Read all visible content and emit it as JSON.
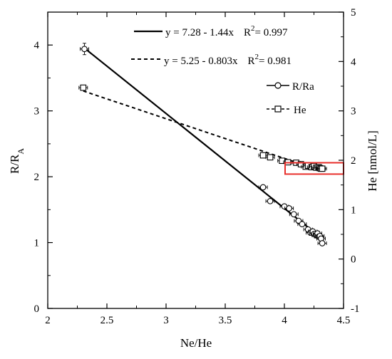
{
  "chart_data": {
    "type": "scatter",
    "xlabel": "Ne/He",
    "ylabel_main": "R/R",
    "ylabel_sub": "A",
    "y2label": "He [nmol/L]",
    "xlim": [
      2,
      4.5
    ],
    "ylim": [
      0,
      4.5
    ],
    "y2lim": [
      -1,
      5
    ],
    "xticks": [
      "2",
      "2.5",
      "3",
      "3.5",
      "4",
      "4.5"
    ],
    "yticks": [
      "0",
      "1",
      "2",
      "3",
      "4"
    ],
    "y2ticks": [
      "-1",
      "0",
      "1",
      "2",
      "3",
      "4",
      "5"
    ],
    "legend": {
      "fit_main": {
        "text": "y = 7.28 - 1.44x",
        "r2_label": "R",
        "r2_sup": "2",
        "r2_value": "= 0.997"
      },
      "fit_he": {
        "text": "y = 5.25 - 0.803x",
        "r2_label": "R",
        "r2_sup": "2",
        "r2_value": "= 0.981"
      },
      "series_main": "R/Ra",
      "series_he": "He"
    },
    "fit_lines": [
      {
        "series": "R/Ra",
        "intercept": 7.28,
        "slope": -1.44,
        "x_range": [
          2.3,
          4.32
        ],
        "axis": "left",
        "style": "solid"
      },
      {
        "series": "He",
        "intercept": 5.25,
        "slope": -0.803,
        "x_range": [
          2.3,
          4.32
        ],
        "axis": "right",
        "style": "dashed"
      }
    ],
    "series": [
      {
        "name": "R/Ra",
        "axis": "left",
        "marker": "circle",
        "points": [
          [
            2.31,
            3.94
          ],
          [
            3.82,
            1.84
          ],
          [
            3.88,
            1.63
          ],
          [
            4.0,
            1.55
          ],
          [
            4.04,
            1.52
          ],
          [
            4.08,
            1.43
          ],
          [
            4.12,
            1.33
          ],
          [
            4.15,
            1.28
          ],
          [
            4.2,
            1.2
          ],
          [
            4.22,
            1.15
          ],
          [
            4.24,
            1.17
          ],
          [
            4.25,
            1.13
          ],
          [
            4.27,
            1.11
          ],
          [
            4.28,
            1.14
          ],
          [
            4.29,
            1.09
          ],
          [
            4.3,
            1.1
          ],
          [
            4.31,
            1.06
          ],
          [
            4.32,
            0.99
          ]
        ]
      },
      {
        "name": "He",
        "axis": "right",
        "marker": "square",
        "points": [
          [
            2.3,
            3.47
          ],
          [
            3.82,
            2.1
          ],
          [
            3.88,
            2.06
          ],
          [
            3.98,
            1.99
          ],
          [
            4.03,
            1.96
          ],
          [
            4.1,
            1.95
          ],
          [
            4.14,
            1.92
          ],
          [
            4.18,
            1.87
          ],
          [
            4.2,
            1.89
          ],
          [
            4.23,
            1.86
          ],
          [
            4.25,
            1.88
          ],
          [
            4.27,
            1.85
          ],
          [
            4.29,
            1.86
          ],
          [
            4.3,
            1.84
          ],
          [
            4.31,
            1.83
          ],
          [
            4.32,
            1.83
          ]
        ]
      }
    ],
    "highlight_box": {
      "x_range": [
        4.0,
        4.5
      ],
      "y2_range": [
        1.72,
        1.95
      ],
      "color": "#e8302c"
    }
  }
}
